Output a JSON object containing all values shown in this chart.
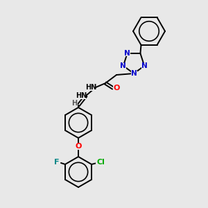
{
  "background_color": "#e8e8e8",
  "atom_colors": {
    "N": "#0000cc",
    "O": "#ff0000",
    "F": "#008888",
    "Cl": "#00aa00",
    "C": "#000000",
    "H": "#555555"
  },
  "bond_color": "#000000",
  "figsize": [
    3.0,
    3.0
  ],
  "dpi": 100,
  "lw": 1.4
}
